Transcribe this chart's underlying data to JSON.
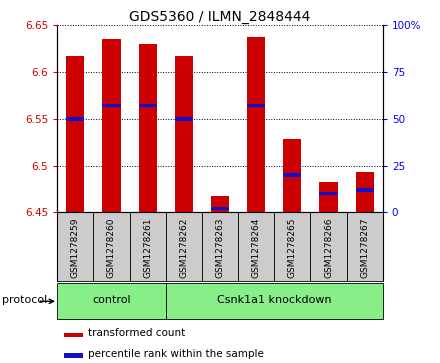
{
  "title": "GDS5360 / ILMN_2848444",
  "samples": [
    "GSM1278259",
    "GSM1278260",
    "GSM1278261",
    "GSM1278262",
    "GSM1278263",
    "GSM1278264",
    "GSM1278265",
    "GSM1278266",
    "GSM1278267"
  ],
  "transformed_counts": [
    6.617,
    6.635,
    6.63,
    6.617,
    6.468,
    6.638,
    6.528,
    6.483,
    6.493
  ],
  "percentile_ranks": [
    50,
    57,
    57,
    50,
    2,
    57,
    20,
    10,
    12
  ],
  "ylim_left": [
    6.45,
    6.65
  ],
  "ylim_right": [
    0,
    100
  ],
  "yticks_left": [
    6.45,
    6.5,
    6.55,
    6.6,
    6.65
  ],
  "yticks_right": [
    0,
    25,
    50,
    75,
    100
  ],
  "bar_width": 0.5,
  "red_color": "#cc0000",
  "blue_color": "#1111cc",
  "control_indices": [
    0,
    1,
    2
  ],
  "knockdown_indices": [
    3,
    4,
    5,
    6,
    7,
    8
  ],
  "control_label": "control",
  "knockdown_label": "Csnk1a1 knockdown",
  "protocol_label": "protocol",
  "legend1": "transformed count",
  "legend2": "percentile rank within the sample",
  "group_color": "#88ee88",
  "bg_color": "#cccccc",
  "title_fontsize": 10,
  "tick_fontsize": 7.5,
  "sample_fontsize": 6.5
}
